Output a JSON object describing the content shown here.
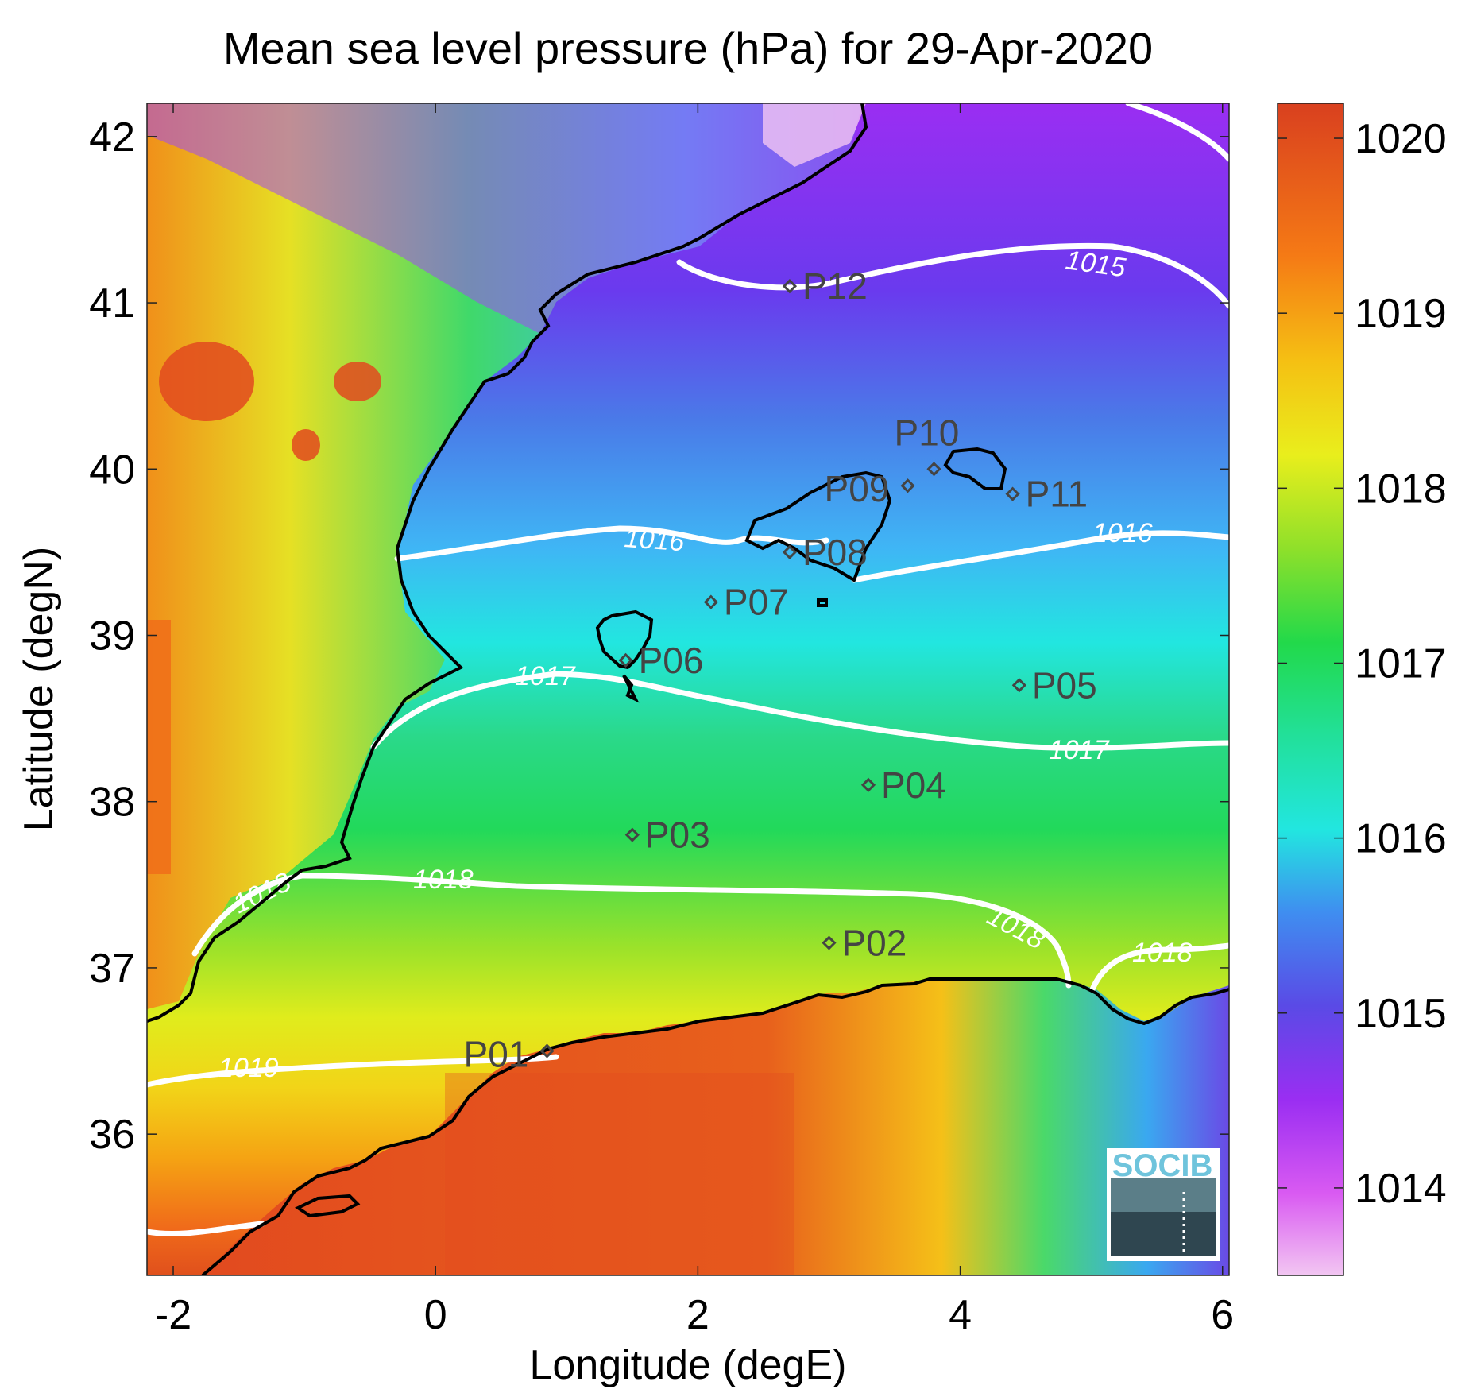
{
  "title": "Mean sea level pressure (hPa) for 29-Apr-2020",
  "xlabel": "Longitude (degE)",
  "ylabel": "Latitude (degN)",
  "xlim": [
    -2.2,
    6.05
  ],
  "ylim": [
    35.15,
    42.2
  ],
  "xticks": [
    "-2",
    "0",
    "2",
    "4",
    "6"
  ],
  "yticks": [
    "36",
    "37",
    "38",
    "39",
    "40",
    "41",
    "42"
  ],
  "colorbar": {
    "range": [
      1013.5,
      1020.2
    ],
    "ticks": [
      "1014",
      "1015",
      "1016",
      "1017",
      "1018",
      "1019",
      "1020"
    ]
  },
  "logo_text": "SOCIB",
  "chart_data": {
    "type": "heatmap",
    "variable": "Mean sea level pressure (hPa)",
    "date": "29-Apr-2020",
    "contours": [
      {
        "level": "1015",
        "label": "1015"
      },
      {
        "level": "1016",
        "label": "1016"
      },
      {
        "level": "1017",
        "label": "1017"
      },
      {
        "level": "1018",
        "label": "1018"
      },
      {
        "level": "1019",
        "label": "1019"
      }
    ],
    "points": [
      {
        "name": "P01",
        "lon": 0.85,
        "lat": 36.5
      },
      {
        "name": "P02",
        "lon": 3.0,
        "lat": 37.15
      },
      {
        "name": "P03",
        "lon": 1.5,
        "lat": 37.8
      },
      {
        "name": "P04",
        "lon": 3.3,
        "lat": 38.1
      },
      {
        "name": "P05",
        "lon": 4.45,
        "lat": 38.7
      },
      {
        "name": "P06",
        "lon": 1.45,
        "lat": 38.85
      },
      {
        "name": "P07",
        "lon": 2.1,
        "lat": 39.2
      },
      {
        "name": "P08",
        "lon": 2.7,
        "lat": 39.5
      },
      {
        "name": "P09",
        "lon": 3.6,
        "lat": 39.9
      },
      {
        "name": "P10",
        "lon": 3.8,
        "lat": 40.0
      },
      {
        "name": "P11",
        "lon": 4.4,
        "lat": 39.85
      },
      {
        "name": "P12",
        "lon": 2.7,
        "lat": 41.1
      }
    ]
  },
  "colors": {
    "cmap": [
      "#f2c6f2",
      "#d95af2",
      "#9a2ef2",
      "#5a4ae6",
      "#3fa6f5",
      "#22e6e0",
      "#22d95a",
      "#9be22a",
      "#e9ee1c",
      "#f5a313",
      "#f0571a",
      "#d9401f"
    ],
    "coast": "#000000",
    "contour": "#ffffff"
  }
}
